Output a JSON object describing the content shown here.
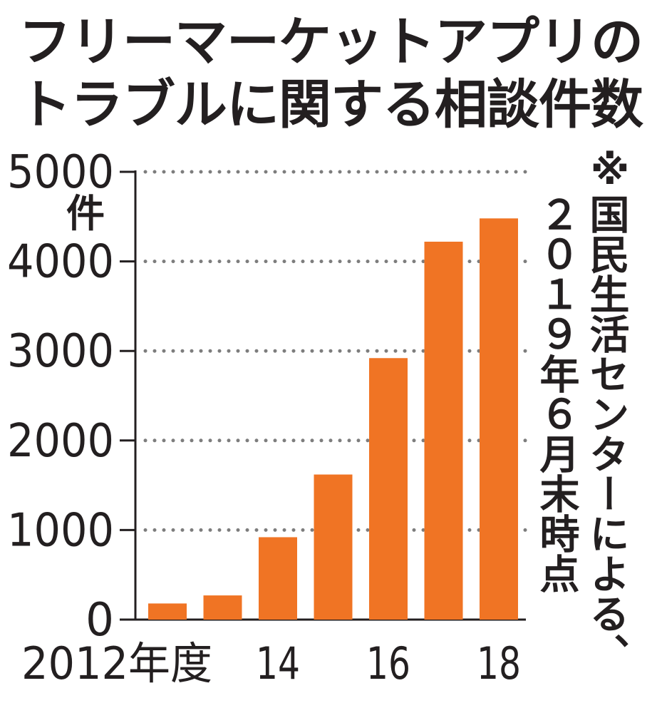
{
  "title_line1": "フリーマーケットアプリの",
  "title_line2": "トラブルに関する相談件数",
  "note": {
    "mark": "※",
    "line1": "国民生活センターによる、",
    "line2": "２０１９年６月末時点"
  },
  "chart_data": {
    "type": "bar",
    "title": "フリーマーケットアプリのトラブルに関する相談件数",
    "unit": "件",
    "categories": [
      "2012年度",
      "",
      "14",
      "",
      "16",
      "",
      "18"
    ],
    "values": [
      180,
      270,
      920,
      1620,
      2920,
      4220,
      4480
    ],
    "ylim": [
      0,
      5000
    ],
    "yticks": [
      0,
      1000,
      2000,
      3000,
      4000,
      5000
    ],
    "grid": true,
    "bar_color": "#f07424",
    "source_note": "※国民生活センターによる、２０１９年６月末時点"
  }
}
